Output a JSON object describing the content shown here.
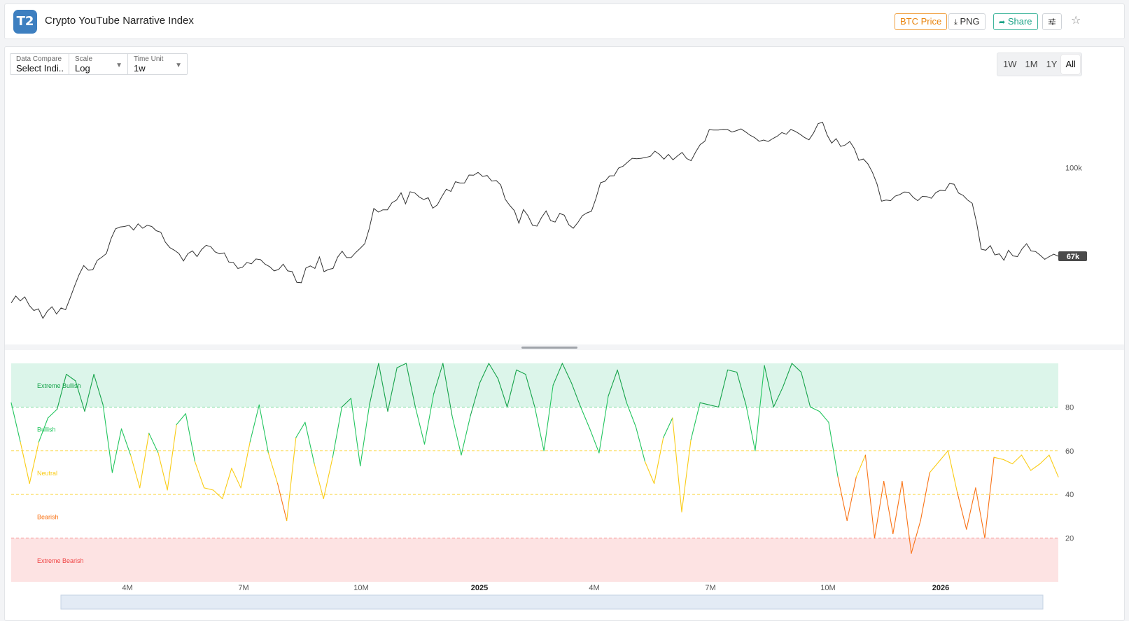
{
  "header": {
    "logo": "T2",
    "title": "Crypto YouTube Narrative Index",
    "btc_price_label": "BTC Price",
    "png_label": "PNG",
    "share_label": "Share"
  },
  "controls": {
    "data_compare": {
      "label": "Data Compare",
      "value": "Select Indi..."
    },
    "scale": {
      "label": "Scale",
      "value": "Log"
    },
    "time_unit": {
      "label": "Time Unit",
      "value": "1w"
    }
  },
  "range_buttons": [
    "1W",
    "1M",
    "1Y",
    "All"
  ],
  "range_active": "All",
  "colors": {
    "extreme_bullish": "#16a34a",
    "bullish": "#22c55e",
    "neutral": "#facc15",
    "bearish": "#f97316",
    "extreme_bearish": "#ef4444",
    "price_line": "#333333",
    "price_badge": "#4a4a4a"
  },
  "chart_data": [
    {
      "type": "line",
      "series": [
        {
          "values": [
            55.5,
            57.2,
            56.0,
            57.0,
            54.9,
            53.7,
            54.1,
            51.9,
            53.6,
            54.6,
            52.9,
            54.3,
            53.9,
            56.7,
            59.8,
            62.8,
            65.3,
            64.0,
            64.1,
            66.8,
            67.7,
            68.8,
            73.3,
            76.6,
            77.2,
            77.4,
            77.8,
            76.2,
            78.3,
            76.8,
            77.8,
            77.4,
            76.0,
            75.5,
            72.3,
            70.6,
            69.8,
            68.8,
            66.6,
            68.8,
            69.6,
            67.9,
            70.0,
            71.3,
            70.9,
            69.3,
            68.7,
            69.0,
            66.3,
            66.2,
            64.5,
            64.8,
            66.2,
            65.8,
            67.2,
            67.0,
            65.7,
            65.0,
            63.8,
            64.2,
            65.7,
            63.8,
            63.6,
            60.7,
            60.6,
            64.6,
            65.2,
            64.5,
            67.8,
            63.6,
            64.2,
            64.5,
            67.7,
            69.5,
            67.6,
            67.6,
            69.1,
            70.4,
            71.8,
            76.7,
            83.7,
            82.4,
            83.2,
            83.2,
            85.8,
            86.8,
            89.6,
            85.4,
            90.0,
            89.6,
            88.0,
            87.0,
            87.7,
            83.8,
            85.0,
            88.1,
            91.0,
            90.1,
            94.0,
            93.5,
            93.5,
            96.8,
            96.7,
            97.9,
            96.2,
            96.6,
            94.3,
            94.5,
            92.7,
            87.1,
            84.8,
            82.9,
            78.5,
            83.3,
            81.1,
            77.8,
            77.5,
            80.5,
            82.8,
            79.4,
            78.9,
            81.9,
            81.3,
            78.0,
            76.8,
            78.7,
            81.1,
            82.1,
            82.7,
            87.4,
            93.6,
            94.2,
            96.4,
            96.5,
            99.8,
            100.6,
            102.4,
            104.1,
            103.9,
            104.1,
            104.5,
            105.0,
            107.4,
            105.9,
            103.7,
            105.9,
            103.4,
            105.2,
            106.8,
            104.0,
            103.0,
            107.0,
            110.5,
            112.1,
            117.9,
            117.7,
            117.7,
            118.1,
            118.0,
            116.7,
            117.4,
            118.3,
            116.8,
            115.1,
            113.9,
            112.1,
            112.7,
            112.0,
            113.4,
            114.6,
            116.4,
            115.6,
            118.0,
            117.0,
            115.6,
            114.0,
            112.8,
            116.2,
            121.0,
            121.8,
            115.2,
            111.2,
            113.4,
            109.6,
            110.3,
            112.0,
            108.6,
            103.2,
            103.8,
            101.6,
            97.9,
            93.1,
            86.4,
            86.8,
            86.6,
            88.3,
            88.9,
            89.9,
            89.8,
            87.8,
            86.6,
            88.2,
            88.1,
            87.5,
            89.7,
            90.6,
            90.4,
            93.3,
            93.0,
            89.5,
            88.6,
            86.8,
            85.6,
            78.5,
            70.1,
            69.8,
            71.2,
            68.4,
            68.7,
            66.8,
            69.8,
            68.1,
            67.9,
            70.2,
            71.8,
            69.6,
            69.4,
            68.3,
            67.1,
            67.9,
            68.6,
            68.0
          ]
        }
      ],
      "scale": "log",
      "y_tick_labels": [
        "100k"
      ],
      "last_value_label": "67k"
    },
    {
      "type": "line",
      "series": [
        {
          "values": [
            82,
            64,
            45,
            64,
            75,
            79,
            95,
            92,
            78,
            95,
            81,
            50,
            70,
            58,
            43,
            68,
            59,
            42,
            72,
            77,
            55,
            43,
            42,
            38,
            52,
            43,
            64,
            81,
            59,
            45,
            28,
            66,
            73,
            54,
            38,
            57,
            80,
            84,
            53,
            81,
            100,
            78,
            98,
            100,
            80,
            63,
            86,
            100,
            76,
            58,
            76,
            91,
            100,
            93,
            80,
            97,
            95,
            80,
            60,
            90,
            100,
            91,
            80,
            70,
            59,
            85,
            97,
            82,
            71,
            55,
            45,
            66,
            75,
            32,
            65,
            82,
            81,
            80,
            97,
            96,
            81,
            60,
            99,
            80,
            89,
            100,
            96,
            80,
            78,
            73,
            48,
            28,
            48,
            58,
            20,
            46,
            22,
            46,
            13,
            28,
            50,
            55,
            60,
            41,
            24,
            43,
            20,
            57,
            56,
            54,
            58,
            51,
            54,
            58,
            48
          ]
        }
      ],
      "zones": [
        {
          "name": "Extreme Bullish",
          "from": 80,
          "to": 100,
          "color": "#dcf5ea"
        },
        {
          "name": "Bullish",
          "from": 60,
          "to": 80
        },
        {
          "name": "Neutral",
          "from": 40,
          "to": 60
        },
        {
          "name": "Bearish",
          "from": 20,
          "to": 40
        },
        {
          "name": "Extreme Bearish",
          "from": 0,
          "to": 20,
          "color": "#fde3e3"
        }
      ],
      "y_ticks": [
        20,
        40,
        60,
        80
      ],
      "ylim": [
        0,
        100
      ],
      "x_tick_labels": [
        "4M",
        "7M",
        "10M",
        "2025",
        "4M",
        "7M",
        "10M",
        "2026"
      ],
      "x_tick_bold": [
        "2025",
        "2026"
      ]
    }
  ]
}
